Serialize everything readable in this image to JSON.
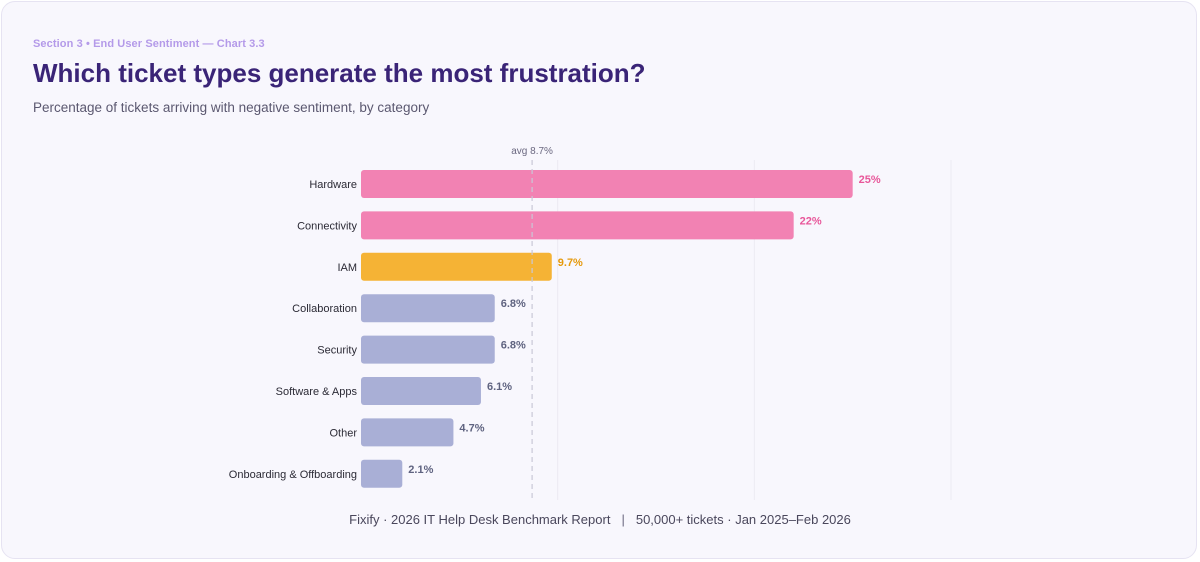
{
  "header": {
    "eyebrow": "Section 3 • End User Sentiment — Chart 3.3",
    "title": "Which ticket types generate the most frustration?",
    "subtitle": "Percentage of tickets arriving with negative sentiment, by category"
  },
  "footer": {
    "source": "Fixify · 2026 IT Help Desk Benchmark Report",
    "separator": "|",
    "scope": "50,000+ tickets · Jan 2025–Feb 2026"
  },
  "colors": {
    "high": "#f282b3",
    "high_label": "#e8579a",
    "mid": "#f5b335",
    "mid_label": "#e59a0d",
    "low": "#a9afd6",
    "low_label": "#5f6380",
    "avg_line": "#c9c7d6",
    "grid": "#ecebf3",
    "category_text": "#2b2a35"
  },
  "chart_data": {
    "type": "bar",
    "orientation": "horizontal",
    "categories": [
      "Hardware",
      "Connectivity",
      "IAM",
      "Collaboration",
      "Security",
      "Software & Apps",
      "Other",
      "Onboarding & Offboarding"
    ],
    "values": [
      25,
      22,
      9.7,
      6.8,
      6.8,
      6.1,
      4.7,
      2.1
    ],
    "labels": [
      "25%",
      "22%",
      "9.7%",
      "6.8%",
      "6.8%",
      "6.1%",
      "4.7%",
      "2.1%"
    ],
    "tiers": [
      "high",
      "high",
      "mid",
      "low",
      "low",
      "low",
      "low",
      "low"
    ],
    "xlim": [
      0,
      30
    ],
    "grid_ticks": [
      10,
      20,
      30
    ],
    "grid": true,
    "average": {
      "value": 8.7,
      "label": "avg 8.7%"
    }
  }
}
